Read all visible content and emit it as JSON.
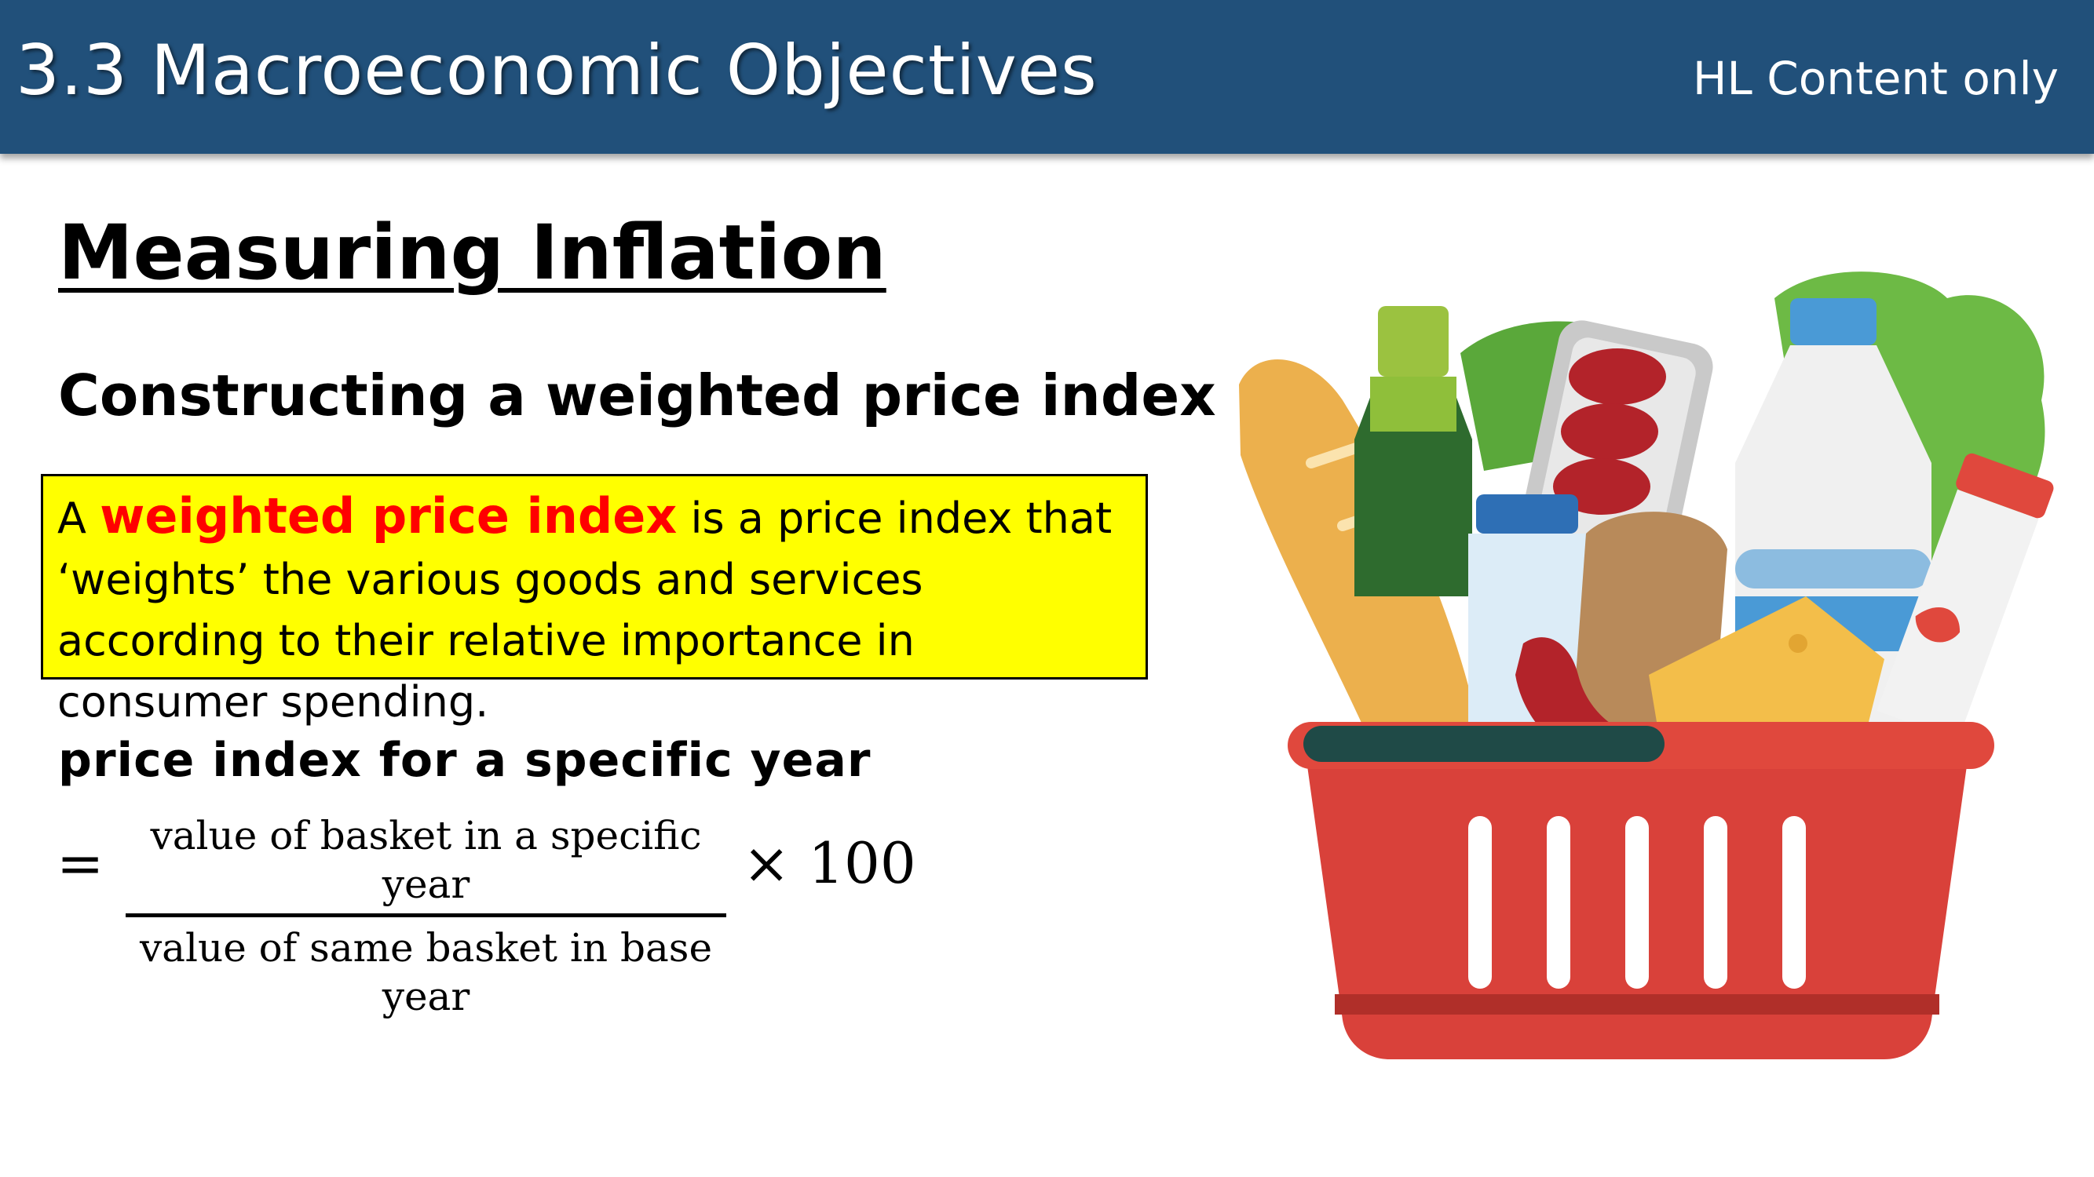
{
  "header": {
    "title": "3.3 Macroeconomic Objectives",
    "note": "HL Content only",
    "color": "#21507a"
  },
  "content": {
    "title": "Measuring Inflation",
    "subtitle": "Constructing a weighted price index",
    "definition": {
      "prefix": "A",
      "term": "weighted price index",
      "text": "is a price index that ‘weights’ the various goods and services according to their relative importance in consumer spending.",
      "box_color": "#ffff00",
      "term_color": "#ff0000"
    },
    "formula": {
      "label": "price index for a specific year",
      "equals": "=",
      "numerator": "value of basket in a specific year",
      "denominator": "value of same basket in base year",
      "multiplier": "× 100"
    }
  },
  "illustration": {
    "icon": "grocery-basket-icon"
  }
}
